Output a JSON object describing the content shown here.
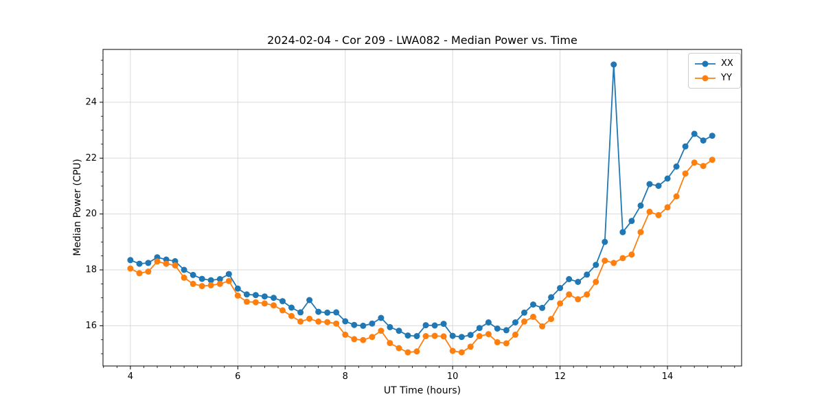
{
  "chart_data": {
    "type": "line",
    "title": "2024-02-04 - Cor 209 - LWA082 - Median Power vs. Time",
    "xlabel": "UT Time (hours)",
    "ylabel": "Median Power (CPU)",
    "xlim": [
      3.49,
      15.38
    ],
    "ylim": [
      14.56,
      25.89
    ],
    "xticks": [
      4,
      6,
      8,
      10,
      12,
      14
    ],
    "yticks": [
      16,
      18,
      20,
      22,
      24
    ],
    "x_minor_step": 0.25,
    "y_minor_step": 0.5,
    "grid": true,
    "legend_position": "upper right",
    "x": [
      4.0,
      4.167,
      4.333,
      4.5,
      4.667,
      4.833,
      5.0,
      5.167,
      5.333,
      5.5,
      5.667,
      5.833,
      6.0,
      6.167,
      6.333,
      6.5,
      6.667,
      6.833,
      7.0,
      7.167,
      7.333,
      7.5,
      7.667,
      7.833,
      8.0,
      8.167,
      8.333,
      8.5,
      8.667,
      8.833,
      9.0,
      9.167,
      9.333,
      9.5,
      9.667,
      9.833,
      10.0,
      10.167,
      10.333,
      10.5,
      10.667,
      10.833,
      11.0,
      11.167,
      11.333,
      11.5,
      11.667,
      11.833,
      12.0,
      12.167,
      12.333,
      12.5,
      12.667,
      12.833,
      13.0,
      13.167,
      13.333,
      13.5,
      13.667,
      13.833,
      14.0,
      14.167,
      14.333,
      14.5,
      14.667,
      14.833
    ],
    "series": [
      {
        "name": "XX",
        "color": "#1f77b4",
        "values": [
          18.35,
          18.22,
          18.25,
          18.45,
          18.37,
          18.31,
          18.0,
          17.82,
          17.68,
          17.63,
          17.67,
          17.85,
          17.33,
          17.12,
          17.1,
          17.05,
          17.0,
          16.88,
          16.65,
          16.48,
          16.92,
          16.5,
          16.47,
          16.48,
          16.16,
          16.03,
          16.0,
          16.08,
          16.28,
          15.95,
          15.82,
          15.65,
          15.63,
          16.02,
          16.01,
          16.07,
          15.64,
          15.6,
          15.67,
          15.92,
          16.12,
          15.9,
          15.84,
          16.12,
          16.47,
          16.76,
          16.64,
          17.02,
          17.35,
          17.67,
          17.57,
          17.83,
          18.18,
          19.0,
          25.35,
          19.35,
          19.75,
          20.3,
          21.07,
          21.01,
          21.27,
          21.7,
          22.42,
          22.87,
          22.63,
          22.8
        ]
      },
      {
        "name": "YY",
        "color": "#ff7f0e",
        "values": [
          18.05,
          17.88,
          17.94,
          18.3,
          18.22,
          18.16,
          17.72,
          17.5,
          17.42,
          17.45,
          17.5,
          17.6,
          17.08,
          16.86,
          16.84,
          16.8,
          16.73,
          16.55,
          16.35,
          16.15,
          16.25,
          16.15,
          16.13,
          16.08,
          15.68,
          15.52,
          15.49,
          15.6,
          15.82,
          15.38,
          15.2,
          15.05,
          15.08,
          15.63,
          15.64,
          15.62,
          15.1,
          15.05,
          15.25,
          15.63,
          15.7,
          15.41,
          15.37,
          15.68,
          16.15,
          16.32,
          15.98,
          16.24,
          16.8,
          17.12,
          16.95,
          17.12,
          17.57,
          18.33,
          18.25,
          18.42,
          18.55,
          19.35,
          20.08,
          19.96,
          20.24,
          20.63,
          21.45,
          21.84,
          21.72,
          21.94
        ]
      }
    ]
  },
  "colors": {
    "grid": "#d9d9d9",
    "spine": "#000000",
    "tick": "#000000",
    "background": "#ffffff"
  }
}
